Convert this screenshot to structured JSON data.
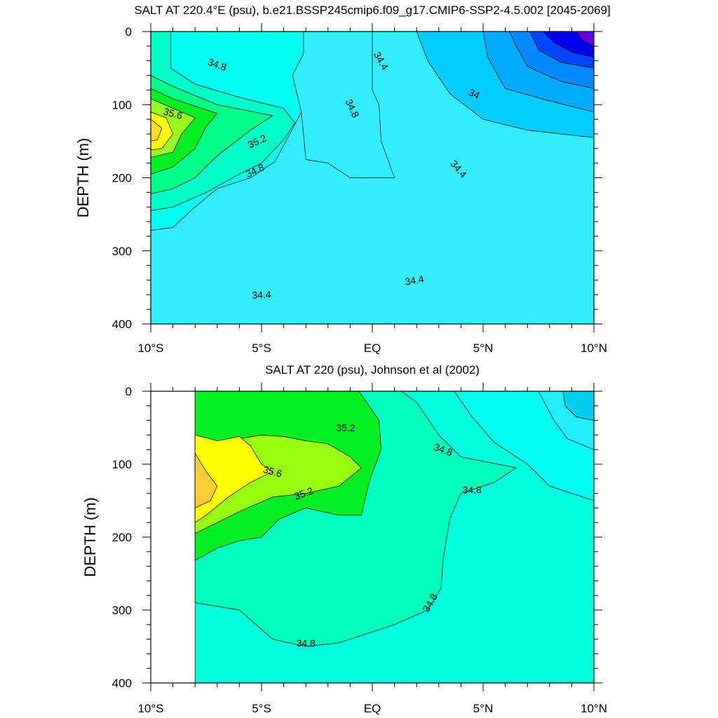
{
  "chart_data": [
    {
      "type": "contour",
      "title": "SALT AT 220.4°E (psu), b.e21.BSSP245cmip6.f09_g17.CMIP6-SSP2-4.5.002 [2045-2069]",
      "ylabel": "DEPTH (m)",
      "xlabel": "",
      "xlim": [
        -10,
        10
      ],
      "ylim": [
        400,
        0
      ],
      "x_ticks": [
        "10°S",
        "5°S",
        "EQ",
        "5°N",
        "10°N"
      ],
      "y_ticks": [
        "0",
        "100",
        "200",
        "300",
        "400"
      ],
      "levels": [
        33.2,
        33.4,
        33.6,
        33.8,
        34.0,
        34.2,
        34.4,
        34.6,
        34.8,
        35.0,
        35.2,
        35.4,
        35.6,
        35.8
      ],
      "regions": [
        {
          "level": 34.4,
          "color": "#33eeff",
          "points": [
            [
              -10,
              400
            ],
            [
              10,
              400
            ],
            [
              10,
              0
            ],
            [
              -10,
              0
            ]
          ]
        },
        {
          "level": 34.6,
          "color": "#00ffee",
          "points": [
            [
              -10,
              0
            ],
            [
              -3.1,
              0
            ],
            [
              -3.1,
              30
            ],
            [
              -3.6,
              60
            ],
            [
              -3.2,
              110
            ],
            [
              -3.9,
              150
            ],
            [
              -4.4,
              178
            ],
            [
              -5.5,
              200
            ],
            [
              -7,
              215
            ],
            [
              -8,
              240
            ],
            [
              -9,
              268
            ],
            [
              -10,
              272
            ]
          ]
        },
        {
          "level": 34.4,
          "color": "#33eeff",
          "points": [
            [
              -3.1,
              0
            ],
            [
              0,
              0
            ],
            [
              0,
              40
            ],
            [
              0,
              80
            ],
            [
              0.3,
              100
            ],
            [
              0.4,
              150
            ],
            [
              1,
              200
            ],
            [
              -1,
              200
            ],
            [
              -2,
              180
            ],
            [
              -3,
              175
            ],
            [
              -3.2,
              110
            ],
            [
              -3.6,
              60
            ],
            [
              -3.1,
              30
            ]
          ]
        },
        {
          "level": 34.8,
          "color": "#00ffc8",
          "points": [
            [
              -10,
              0
            ],
            [
              -9.1,
              0
            ],
            [
              -9.1,
              50
            ],
            [
              -8,
              72
            ],
            [
              -6,
              90
            ],
            [
              -4,
              105
            ],
            [
              -3.5,
              125
            ],
            [
              -4,
              148
            ],
            [
              -5,
              180
            ],
            [
              -6,
              195
            ],
            [
              -7.5,
              220
            ],
            [
              -9,
              240
            ],
            [
              -10,
              245
            ]
          ]
        },
        {
          "level": 35.0,
          "color": "#00ff88",
          "points": [
            [
              -10,
              60
            ],
            [
              -9,
              75
            ],
            [
              -7,
              100
            ],
            [
              -4.5,
              115
            ],
            [
              -5.5,
              135
            ],
            [
              -7,
              170
            ],
            [
              -8,
              200
            ],
            [
              -9,
              215
            ],
            [
              -10,
              222
            ]
          ]
        },
        {
          "level": 35.2,
          "color": "#00ee22",
          "points": [
            [
              -10,
              78
            ],
            [
              -9,
              92
            ],
            [
              -7,
              112
            ],
            [
              -7.5,
              130
            ],
            [
              -8,
              160
            ],
            [
              -9,
              185
            ],
            [
              -10,
              195
            ]
          ]
        },
        {
          "level": 35.4,
          "color": "#99ff22",
          "points": [
            [
              -10,
              92
            ],
            [
              -9,
              105
            ],
            [
              -8,
              118
            ],
            [
              -8.6,
              140
            ],
            [
              -9,
              165
            ],
            [
              -10,
              172
            ]
          ]
        },
        {
          "level": 35.6,
          "color": "#ffff00",
          "points": [
            [
              -10,
              110
            ],
            [
              -9.3,
              118
            ],
            [
              -9,
              140
            ],
            [
              -9.5,
              160
            ],
            [
              -10,
              162
            ]
          ]
        },
        {
          "level": 35.8,
          "color": "#ffdd22",
          "points": [
            [
              -10,
              120
            ],
            [
              -9.5,
              132
            ],
            [
              -9.7,
              148
            ],
            [
              -10,
              150
            ]
          ]
        },
        {
          "level": 34.2,
          "color": "#00ccff",
          "points": [
            [
              2,
              0
            ],
            [
              10,
              0
            ],
            [
              10,
              145
            ],
            [
              7,
              135
            ],
            [
              5,
              120
            ],
            [
              3.5,
              85
            ],
            [
              2.5,
              40
            ]
          ]
        },
        {
          "level": 34.0,
          "color": "#00aaff",
          "points": [
            [
              5,
              0
            ],
            [
              10,
              0
            ],
            [
              10,
              110
            ],
            [
              8,
              95
            ],
            [
              6,
              78
            ],
            [
              5.2,
              35
            ]
          ]
        },
        {
          "level": 33.8,
          "color": "#0088ff",
          "points": [
            [
              6.2,
              0
            ],
            [
              10,
              0
            ],
            [
              10,
              78
            ],
            [
              8.5,
              68
            ],
            [
              7,
              48
            ],
            [
              6.5,
              20
            ]
          ]
        },
        {
          "level": 33.6,
          "color": "#0044ff",
          "points": [
            [
              7.1,
              0
            ],
            [
              10,
              0
            ],
            [
              10,
              50
            ],
            [
              8.5,
              42
            ],
            [
              7.5,
              25
            ]
          ]
        },
        {
          "level": 33.4,
          "color": "#0000ee",
          "points": [
            [
              7.7,
              0
            ],
            [
              10,
              0
            ],
            [
              10,
              35
            ],
            [
              9,
              28
            ],
            [
              8.2,
              15
            ]
          ]
        },
        {
          "level": 33.2,
          "color": "#6600dd",
          "points": [
            [
              9.2,
              0
            ],
            [
              10,
              0
            ],
            [
              10,
              20
            ],
            [
              9.5,
              12
            ]
          ]
        }
      ],
      "labels": [
        {
          "text": "34.8",
          "x": -7.0,
          "y": 45,
          "rotate": 20
        },
        {
          "text": "34.4",
          "x": 0.4,
          "y": 40,
          "rotate": 60
        },
        {
          "text": "34",
          "x": 4.6,
          "y": 85,
          "rotate": 25
        },
        {
          "text": "34.8",
          "x": -0.9,
          "y": 105,
          "rotate": 65
        },
        {
          "text": "35.6",
          "x": -9.0,
          "y": 112,
          "rotate": 15
        },
        {
          "text": "35.2",
          "x": -5.2,
          "y": 150,
          "rotate": -25
        },
        {
          "text": "34.8",
          "x": -5.3,
          "y": 190,
          "rotate": -25
        },
        {
          "text": "34.4",
          "x": 3.9,
          "y": 188,
          "rotate": 50
        },
        {
          "text": "34.4",
          "x": 1.9,
          "y": 340,
          "rotate": -10
        },
        {
          "text": "34.4",
          "x": -5.0,
          "y": 360,
          "rotate": -3
        }
      ]
    },
    {
      "type": "contour",
      "title": "SALT AT 220 (psu), Johnson et al (2002)",
      "ylabel": "DEPTH (m)",
      "xlabel": "",
      "xlim": [
        -10,
        10
      ],
      "ylim": [
        400,
        0
      ],
      "x_ticks": [
        "10°S",
        "5°S",
        "EQ",
        "5°N",
        "10°N"
      ],
      "y_ticks": [
        "0",
        "100",
        "200",
        "300",
        "400"
      ],
      "data_xmin": -8,
      "levels": [
        34.4,
        34.6,
        34.8,
        35.0,
        35.2,
        35.4,
        35.6,
        35.8
      ],
      "regions": [
        {
          "level": 34.8,
          "color": "#00ffdd",
          "points": [
            [
              -8,
              400
            ],
            [
              10,
              400
            ],
            [
              10,
              0
            ],
            [
              -8,
              0
            ]
          ]
        },
        {
          "level": 35.0,
          "color": "#00ffbb",
          "points": [
            [
              -8,
              0
            ],
            [
              1.3,
              0
            ],
            [
              2,
              15
            ],
            [
              3,
              60
            ],
            [
              4,
              90
            ],
            [
              6.5,
              105
            ],
            [
              5.5,
              125
            ],
            [
              4,
              140
            ],
            [
              3.5,
              175
            ],
            [
              3.2,
              230
            ],
            [
              3.1,
              270
            ],
            [
              2.5,
              300
            ],
            [
              1,
              320
            ],
            [
              -1.5,
              345
            ],
            [
              -3,
              350
            ],
            [
              -4.5,
              340
            ],
            [
              -6,
              300
            ],
            [
              -8,
              290
            ]
          ]
        },
        {
          "level": 34.6,
          "color": "#00ffee",
          "points": [
            [
              3.7,
              0
            ],
            [
              10,
              0
            ],
            [
              10,
              150
            ],
            [
              8,
              130
            ],
            [
              7,
              100
            ],
            [
              5.5,
              70
            ],
            [
              4.5,
              35
            ]
          ]
        },
        {
          "level": 34.4,
          "color": "#22eeff",
          "points": [
            [
              7.5,
              0
            ],
            [
              10,
              0
            ],
            [
              10,
              80
            ],
            [
              8.8,
              65
            ],
            [
              8.2,
              40
            ]
          ]
        },
        {
          "level": 34.2,
          "color": "#00ccee",
          "points": [
            [
              8.6,
              0
            ],
            [
              10,
              0
            ],
            [
              10,
              40
            ],
            [
              9.2,
              35
            ],
            [
              8.7,
              20
            ]
          ]
        },
        {
          "level": 35.2,
          "color": "#00ee22",
          "points": [
            [
              -8,
              0
            ],
            [
              -0.6,
              0
            ],
            [
              0.3,
              40
            ],
            [
              0.4,
              80
            ],
            [
              -0.1,
              120
            ],
            [
              -0.5,
              170
            ],
            [
              -1.5,
              170
            ],
            [
              -3,
              160
            ],
            [
              -4.2,
              175
            ],
            [
              -5,
              200
            ],
            [
              -6,
              205
            ],
            [
              -7,
              215
            ],
            [
              -8,
              232
            ]
          ]
        },
        {
          "level": 35.4,
          "color": "#99ff11",
          "points": [
            [
              -8,
              95
            ],
            [
              -7,
              80
            ],
            [
              -6,
              65
            ],
            [
              -5,
              60
            ],
            [
              -4,
              62
            ],
            [
              -3,
              68
            ],
            [
              -2,
              72
            ],
            [
              -1,
              90
            ],
            [
              -0.5,
              105
            ],
            [
              -1.5,
              130
            ],
            [
              -3,
              140
            ],
            [
              -4.5,
              145
            ],
            [
              -6,
              165
            ],
            [
              -7,
              180
            ],
            [
              -8,
              195
            ]
          ]
        },
        {
          "level": 35.6,
          "color": "#ffff00",
          "points": [
            [
              -8,
              60
            ],
            [
              -7,
              68
            ],
            [
              -6,
              62
            ],
            [
              -5.5,
              75
            ],
            [
              -5,
              100
            ],
            [
              -4.5,
              110
            ],
            [
              -5.5,
              125
            ],
            [
              -6.5,
              145
            ],
            [
              -7.5,
              170
            ],
            [
              -8,
              180
            ]
          ]
        },
        {
          "level": 35.8,
          "color": "#ffcc33",
          "points": [
            [
              -8,
              85
            ],
            [
              -7.5,
              110
            ],
            [
              -7,
              130
            ],
            [
              -7.3,
              150
            ],
            [
              -8,
              160
            ]
          ]
        }
      ],
      "labels": [
        {
          "text": "35.2",
          "x": -1.2,
          "y": 50,
          "rotate": 0
        },
        {
          "text": "34.8",
          "x": 3.2,
          "y": 80,
          "rotate": 20
        },
        {
          "text": "35.6",
          "x": -4.5,
          "y": 110,
          "rotate": 15
        },
        {
          "text": "34.8",
          "x": 4.5,
          "y": 135,
          "rotate": 0
        },
        {
          "text": "35.2",
          "x": -3.1,
          "y": 140,
          "rotate": -20
        },
        {
          "text": "34.8",
          "x": 2.6,
          "y": 290,
          "rotate": -60
        },
        {
          "text": "34.8",
          "x": -3.0,
          "y": 345,
          "rotate": 0
        }
      ]
    }
  ]
}
